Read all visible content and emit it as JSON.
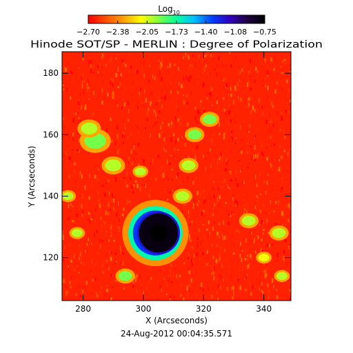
{
  "chart_data": {
    "type": "heatmap",
    "title": "Hinode SOT/SP - MERLIN : Degree of Polarization",
    "colorbar": {
      "label_main": "Log",
      "label_sub": "10",
      "min": -2.7,
      "max": -0.75,
      "ticks": [
        "−2.70",
        "−2.38",
        "−2.05",
        "−1.73",
        "−1.40",
        "−1.08",
        "−0.75"
      ],
      "colormap": [
        "#ff0000",
        "#ff5000",
        "#ffa000",
        "#ffff00",
        "#80ff40",
        "#00ffa0",
        "#00c0ff",
        "#0040ff",
        "#3000c0",
        "#200040",
        "#000000"
      ]
    },
    "xlabel": "X (Arcseconds)",
    "ylabel": "Y (Arcseconds)",
    "xlim": [
      273,
      349
    ],
    "ylim": [
      106,
      187
    ],
    "xticks": [
      280,
      300,
      320,
      340
    ],
    "yticks": [
      120,
      140,
      160,
      180
    ],
    "timestamp": "24-Aug-2012 00:04:35.571",
    "features": [
      {
        "kind": "spot",
        "x": 305,
        "y": 128,
        "r": 6.5,
        "value": -0.8
      },
      {
        "kind": "ridge",
        "x": 304,
        "y": 128,
        "r": 11,
        "value": -1.7
      },
      {
        "kind": "blob",
        "x": 284,
        "y": 158,
        "r": 4,
        "value": -1.9
      },
      {
        "kind": "blob",
        "x": 282,
        "y": 162,
        "r": 3,
        "value": -2.0
      },
      {
        "kind": "blob",
        "x": 290,
        "y": 150,
        "r": 3,
        "value": -2.0
      },
      {
        "kind": "blob",
        "x": 317,
        "y": 160,
        "r": 2.5,
        "value": -1.9
      },
      {
        "kind": "blob",
        "x": 322,
        "y": 165,
        "r": 2.5,
        "value": -1.9
      },
      {
        "kind": "blob",
        "x": 315,
        "y": 150,
        "r": 2.5,
        "value": -2.0
      },
      {
        "kind": "blob",
        "x": 313,
        "y": 140,
        "r": 2.5,
        "value": -2.0
      },
      {
        "kind": "blob",
        "x": 299,
        "y": 148,
        "r": 2,
        "value": -2.0
      },
      {
        "kind": "blob",
        "x": 294,
        "y": 114,
        "r": 2.5,
        "value": -1.9
      },
      {
        "kind": "blob",
        "x": 278,
        "y": 128,
        "r": 2,
        "value": -2.0
      },
      {
        "kind": "blob",
        "x": 275,
        "y": 140,
        "r": 2,
        "value": -2.0
      },
      {
        "kind": "blob",
        "x": 335,
        "y": 132,
        "r": 2.5,
        "value": -2.0
      },
      {
        "kind": "blob",
        "x": 345,
        "y": 128,
        "r": 2.5,
        "value": -2.0
      },
      {
        "kind": "blob",
        "x": 340,
        "y": 120,
        "r": 2,
        "value": -2.1
      },
      {
        "kind": "blob",
        "x": 346,
        "y": 114,
        "r": 2,
        "value": -2.0
      }
    ]
  }
}
